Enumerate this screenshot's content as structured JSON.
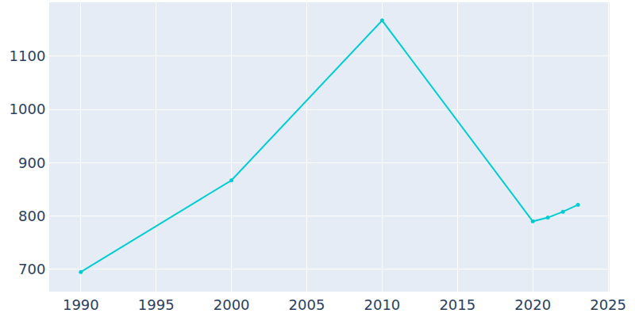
{
  "chart_data": {
    "type": "line",
    "x": [
      1990,
      2000,
      2010,
      2020,
      2021,
      2022,
      2023
    ],
    "values": [
      695,
      867,
      1167,
      790,
      797,
      808,
      821
    ],
    "color": "#00cdd1",
    "marker": "circle",
    "line_style": "solid",
    "xlim": [
      1987.9,
      2025.1
    ],
    "xticks": [
      1990,
      1995,
      2000,
      2005,
      2010,
      2015,
      2020,
      2025
    ],
    "ylim": [
      658,
      1201
    ],
    "yticks": [
      700,
      800,
      900,
      1000,
      1100
    ],
    "grid": true
  }
}
